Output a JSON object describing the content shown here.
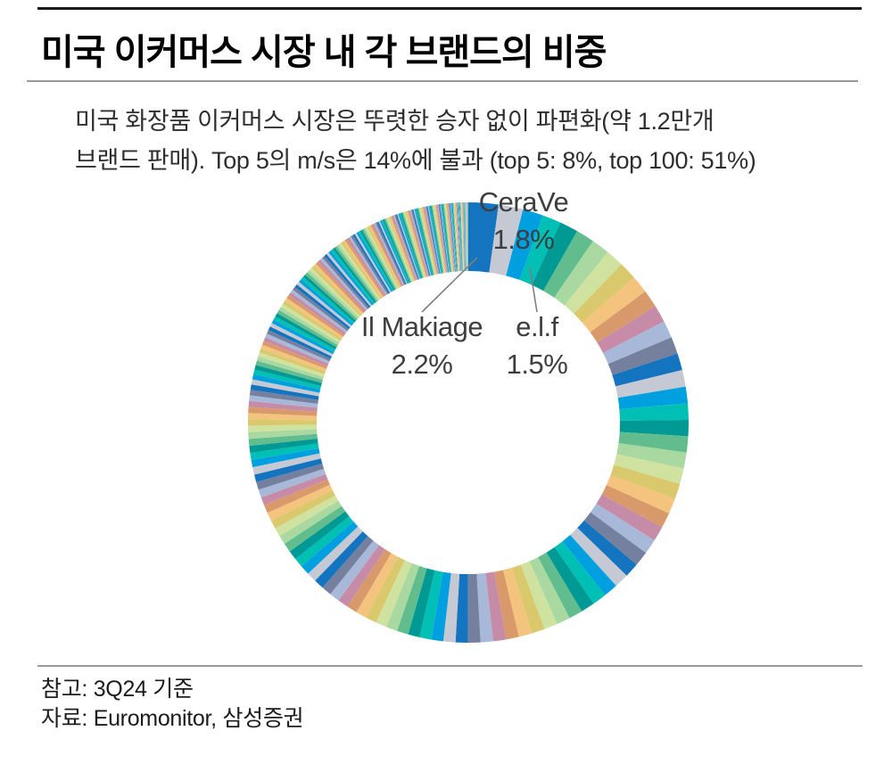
{
  "header": {
    "title": "미국 이커머스 시장 내 각 브랜드의 비중"
  },
  "subtitle": {
    "line1": "미국 화장품 이커머스 시장은 뚜렷한 승자 없이 파편화(약 1.2만개",
    "line2": "브랜드 판매). Top 5의 m/s은 14%에 불과 (top 5: 8%, top 100: 51%)"
  },
  "chart_data": {
    "type": "pie",
    "variant": "donut",
    "title": "미국 이커머스 시장 내 각 브랜드의 비중",
    "unit": "% market share",
    "layout_hints": {
      "start": "12 o'clock",
      "direction": "clockwise, descending share",
      "legend": "none",
      "labels": "top 3 slices only, with leader lines"
    },
    "labeled_slices": [
      {
        "label": "Il Makiage",
        "value": 2.2,
        "value_text": "2.2%"
      },
      {
        "label": "CeraVe",
        "value": 1.8,
        "value_text": "1.8%"
      },
      {
        "label": "e.l.f",
        "value": 1.5,
        "value_text": "1.5%"
      }
    ],
    "annotations": {
      "top5_ms": "14%",
      "top5": "8%",
      "top100": "51%",
      "brand_count": "약 1.2만개",
      "as_of": "3Q24"
    },
    "render_tiers": [
      {
        "count": 90,
        "from": 1.4,
        "to": 0.3
      },
      {
        "count": 70,
        "from": 0.3,
        "to": 0.1
      },
      {
        "count": 110,
        "from": 0.1,
        "to": 0.008
      }
    ],
    "palette": [
      "#1574bf",
      "#c5c9d3",
      "#00a0e0",
      "#00bfb4",
      "#009993",
      "#61bd8e",
      "#a9d8a1",
      "#cfe2a0",
      "#d9c96c",
      "#f4c37d",
      "#d89a6b",
      "#c68ba7",
      "#a8b8d8",
      "#75809e"
    ],
    "leader_line_color": "#7f7f7f",
    "label_text_color": "#3d3d3d"
  },
  "footer": {
    "note": "참고: 3Q24 기준",
    "source": "자료: Euromonitor, 삼성증권"
  }
}
